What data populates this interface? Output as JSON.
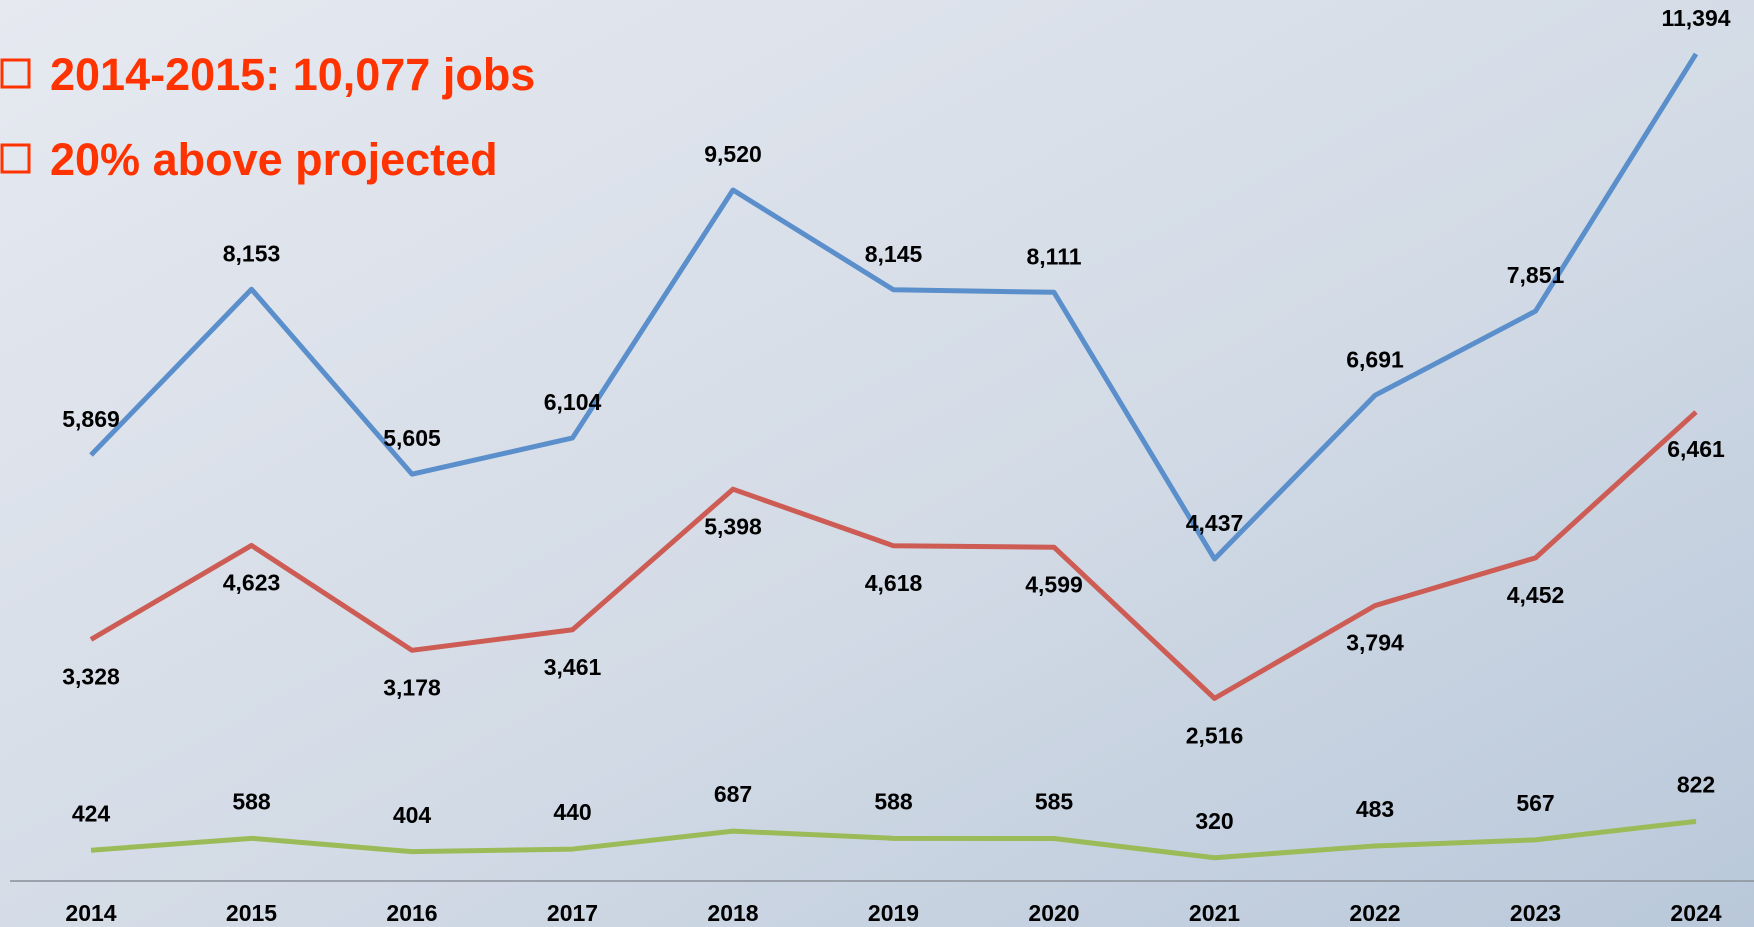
{
  "chart_data": {
    "type": "line",
    "annotations": [
      "2014-2015: 10,077 jobs",
      "20% above projected"
    ],
    "categories": [
      "2014",
      "2015",
      "2016",
      "2017",
      "2018",
      "2019",
      "2020",
      "2021",
      "2022",
      "2023",
      "2024"
    ],
    "series": [
      {
        "color": "#5b8fcb",
        "values": [
          5869,
          8153,
          5605,
          6104,
          9520,
          8145,
          8111,
          4437,
          6691,
          7851,
          11394
        ],
        "value_labels": [
          "5,869",
          "8,153",
          "5,605",
          "6,104",
          "9,520",
          "8,145",
          "8,111",
          "4,437",
          "6,691",
          "7,851",
          "11,394"
        ]
      },
      {
        "color": "#cd5c55",
        "values": [
          3328,
          4623,
          3178,
          3461,
          5398,
          4618,
          4599,
          2516,
          3794,
          4452,
          6461
        ],
        "value_labels": [
          "3,328",
          "4,623",
          "3,178",
          "3,461",
          "5,398",
          "4,618",
          "4,599",
          "2,516",
          "3,794",
          "4,452",
          "6,461"
        ]
      },
      {
        "color": "#9bbb59",
        "values": [
          424,
          588,
          404,
          440,
          687,
          588,
          585,
          320,
          483,
          567,
          822
        ]
      }
    ],
    "ylim": [
      0,
      12000
    ]
  }
}
